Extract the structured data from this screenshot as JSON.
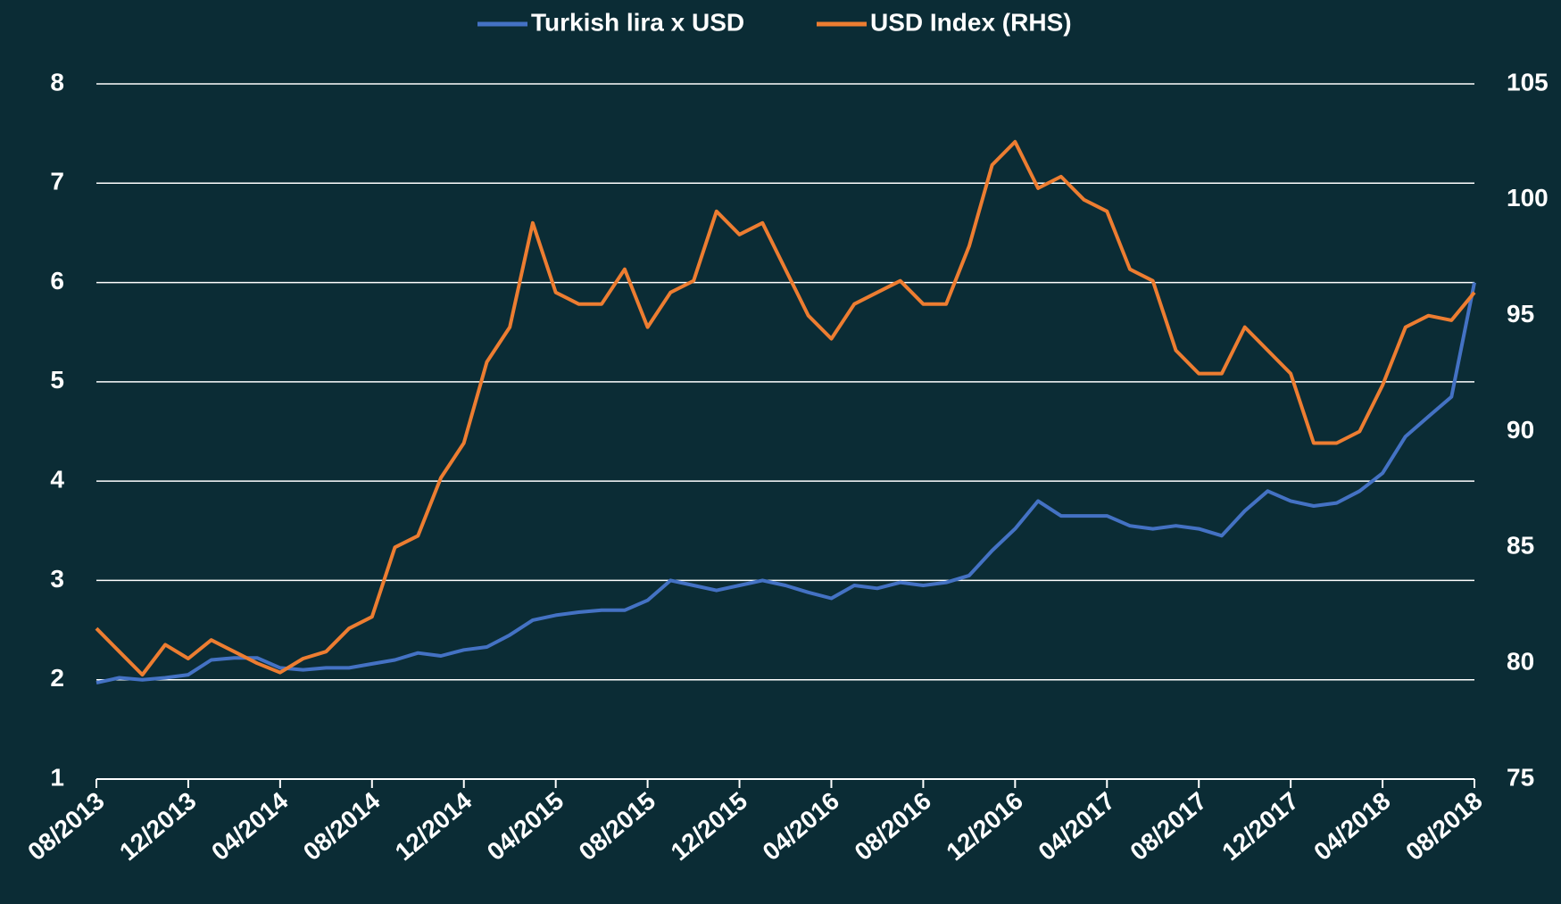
{
  "chart_data": {
    "type": "line",
    "x": [
      "08/2013",
      null,
      null,
      null,
      "12/2013",
      null,
      null,
      null,
      "04/2014",
      null,
      null,
      null,
      "08/2014",
      null,
      null,
      null,
      "12/2014",
      null,
      null,
      null,
      "04/2015",
      null,
      null,
      null,
      "08/2015",
      null,
      null,
      null,
      "12/2015",
      null,
      null,
      null,
      "04/2016",
      null,
      null,
      null,
      "08/2016",
      null,
      null,
      null,
      "12/2016",
      null,
      null,
      null,
      "04/2017",
      null,
      null,
      null,
      "08/2017",
      null,
      null,
      null,
      "12/2017",
      null,
      null,
      null,
      "04/2018",
      null,
      null,
      null,
      "08/2018"
    ],
    "series": [
      {
        "name": "Turkish lira x USD",
        "color": "#4472c4",
        "values": [
          1.97,
          2.02,
          2.0,
          2.02,
          2.05,
          2.2,
          2.22,
          2.22,
          2.12,
          2.1,
          2.12,
          2.12,
          2.16,
          2.2,
          2.27,
          2.24,
          2.3,
          2.33,
          2.45,
          2.6,
          2.65,
          2.68,
          2.7,
          2.7,
          2.8,
          3.0,
          2.95,
          2.9,
          2.95,
          3.0,
          2.95,
          2.88,
          2.82,
          2.95,
          2.92,
          2.98,
          2.95,
          2.98,
          3.05,
          3.3,
          3.52,
          3.8,
          3.65,
          3.65,
          3.65,
          3.55,
          3.52,
          3.55,
          3.52,
          3.45,
          3.7,
          3.9,
          3.8,
          3.75,
          3.78,
          3.9,
          4.08,
          4.45,
          4.65,
          4.85,
          6.0
        ]
      },
      {
        "name": "USD Index (RHS)",
        "color": "#ed7d31",
        "axis": "y2",
        "values": [
          81.5,
          80.5,
          79.5,
          80.8,
          80.2,
          81,
          80.5,
          80,
          79.6,
          80.2,
          80.5,
          81.5,
          82,
          85,
          85.5,
          88,
          89.5,
          93,
          94.5,
          99,
          96,
          95.5,
          95.5,
          97,
          94.5,
          96,
          96.5,
          99.5,
          98.5,
          99,
          97,
          95,
          94,
          95.5,
          96,
          96.5,
          95.5,
          95.5,
          98,
          101.5,
          102.5,
          100.5,
          101,
          100,
          99.5,
          97,
          96.5,
          93.5,
          92.5,
          92.5,
          94.5,
          93.5,
          92.5,
          89.5,
          89.5,
          90,
          92,
          94.5,
          95,
          94.8,
          96
        ]
      }
    ],
    "ylim": [
      1,
      8
    ],
    "yticks": [
      1,
      2,
      3,
      4,
      5,
      6,
      7,
      8
    ],
    "y2lim": [
      75,
      105
    ],
    "y2ticks": [
      75,
      80,
      85,
      90,
      95,
      100,
      105
    ],
    "grid": true,
    "legend": "top"
  }
}
